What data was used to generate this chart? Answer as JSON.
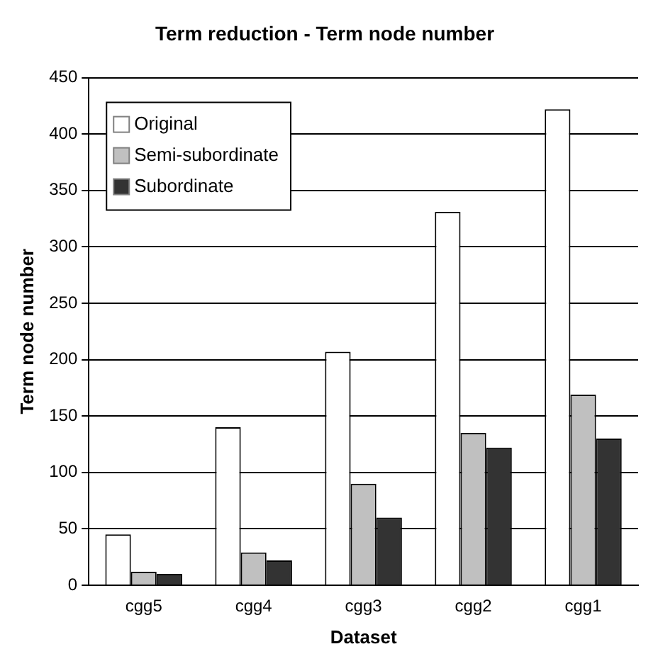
{
  "chart_data": {
    "type": "bar",
    "title": "Term reduction - Term node number",
    "xlabel": "Dataset",
    "ylabel": "Term node number",
    "categories": [
      "cgg5",
      "cgg4",
      "cgg3",
      "cgg2",
      "cgg1"
    ],
    "series": [
      {
        "name": "Original",
        "color": "#ffffff",
        "values": [
          45,
          140,
          207,
          331,
          422
        ]
      },
      {
        "name": "Semi-subordinate",
        "color": "#c0c0c0",
        "values": [
          12,
          29,
          90,
          135,
          169
        ]
      },
      {
        "name": "Subordinate",
        "color": "#333333",
        "values": [
          10,
          22,
          60,
          122,
          130
        ]
      }
    ],
    "ylim": [
      0,
      450
    ],
    "yticks": [
      0,
      50,
      100,
      150,
      200,
      250,
      300,
      350,
      400,
      450
    ],
    "grid": "y",
    "legend": "top left"
  }
}
